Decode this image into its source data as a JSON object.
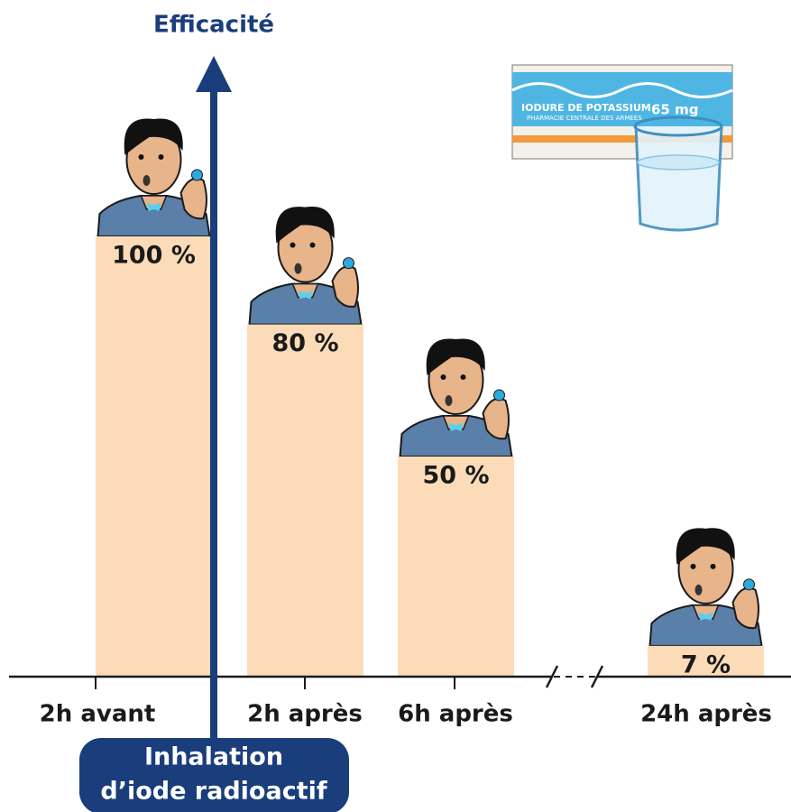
{
  "chart_data": {
    "type": "bar",
    "title": "Efficacité",
    "categories": [
      "2h avant",
      "2h après",
      "6h après",
      "24h après"
    ],
    "values": [
      100,
      80,
      50,
      7
    ],
    "value_labels": [
      "100 %",
      "80 %",
      "50 %",
      "7 %"
    ],
    "color": "#fcdcb8",
    "ylim": [
      0,
      100
    ],
    "annotation": [
      "Inhalation",
      "d’iode radioactif"
    ],
    "package": {
      "name": "IODURE DE POTASSIUM",
      "dose": "65 mg",
      "maker": "PHARMACIE CENTRALE DES ARMEES"
    }
  }
}
